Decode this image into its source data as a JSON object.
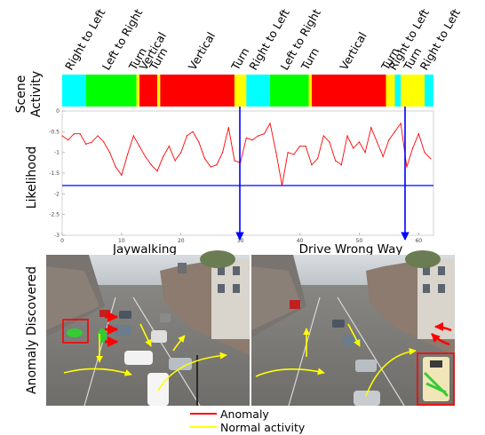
{
  "left_labels": {
    "scene_activity": [
      "Scene",
      "Activity"
    ],
    "likelihood": "Likelihood",
    "anomaly_discovered": "Anomaly Discovered"
  },
  "activity_bar": {
    "labels": [
      "Right to Left",
      "Left to Right",
      "Turn",
      "Vertical",
      "Turn",
      "Vertical",
      "Turn",
      "Right to Left",
      "Left to Right",
      "Turn",
      "Vertical",
      "Turn",
      "Right to Left",
      "Turn",
      "Right to Left"
    ],
    "segments": [
      {
        "color": "#00ffff",
        "span": [
          0,
          4
        ]
      },
      {
        "color": "#00ff00",
        "span": [
          4,
          12.5
        ]
      },
      {
        "color": "#ffff00",
        "span": [
          12.5,
          13
        ]
      },
      {
        "color": "#ff0000",
        "span": [
          13,
          16
        ]
      },
      {
        "color": "#ffff00",
        "span": [
          16,
          16.5
        ]
      },
      {
        "color": "#ff0000",
        "span": [
          16.5,
          29
        ]
      },
      {
        "color": "#ffff00",
        "span": [
          29,
          31
        ]
      },
      {
        "color": "#00ffff",
        "span": [
          31,
          35
        ]
      },
      {
        "color": "#00ff00",
        "span": [
          35,
          41.5
        ]
      },
      {
        "color": "#ffff00",
        "span": [
          41.5,
          42
        ]
      },
      {
        "color": "#ff0000",
        "span": [
          42,
          54.5
        ]
      },
      {
        "color": "#ffff00",
        "span": [
          54.5,
          56
        ]
      },
      {
        "color": "#00ffff",
        "span": [
          56,
          57
        ]
      },
      {
        "color": "#ffff00",
        "span": [
          57,
          61
        ]
      },
      {
        "color": "#00ffff",
        "span": [
          61,
          62.5
        ]
      }
    ]
  },
  "chart_data": {
    "type": "line",
    "xlim": [
      0,
      62.5
    ],
    "ylim": [
      -3,
      0
    ],
    "xticks": [
      "0",
      "10",
      "20",
      "30",
      "40",
      "50",
      "60"
    ],
    "yticks": [
      "0",
      "-0.5",
      "-1",
      "-1.5",
      "-2",
      "-2.5",
      "-3"
    ],
    "series": [
      {
        "color": "#ff0000",
        "x": [
          0,
          1,
          2,
          3,
          4,
          5,
          6,
          7,
          8,
          9,
          10,
          11,
          12,
          13,
          14,
          15,
          16,
          17,
          18,
          19,
          20,
          21,
          22,
          23,
          24,
          25,
          26,
          27,
          28,
          29,
          30,
          31,
          32,
          33,
          34,
          35,
          36,
          37,
          38,
          39,
          40,
          41,
          42,
          43,
          44,
          45,
          46,
          47,
          48,
          49,
          50,
          51,
          52,
          53,
          54,
          55,
          56,
          57,
          58,
          59,
          60,
          61,
          62
        ],
        "y": [
          -0.6,
          -0.7,
          -0.55,
          -0.55,
          -0.8,
          -0.75,
          -0.6,
          -0.75,
          -1.0,
          -1.35,
          -1.55,
          -1.05,
          -0.6,
          -0.85,
          -1.1,
          -1.3,
          -1.45,
          -1.1,
          -0.85,
          -1.2,
          -1.0,
          -0.6,
          -0.5,
          -0.75,
          -1.15,
          -1.35,
          -1.3,
          -1.0,
          -0.4,
          -1.2,
          -1.25,
          -0.65,
          -0.7,
          -0.6,
          -0.55,
          -0.3,
          -1.0,
          -1.8,
          -1.0,
          -1.05,
          -0.85,
          -0.85,
          -1.3,
          -1.15,
          -0.6,
          -0.75,
          -1.2,
          -1.3,
          -0.6,
          -0.9,
          -0.75,
          -1.0,
          -0.4,
          -0.75,
          -1.1,
          -0.7,
          -0.5,
          -0.3,
          -1.35,
          -0.9,
          -0.55,
          -1.0,
          -1.15
        ]
      },
      {
        "color": "#0000ff",
        "x": [
          0,
          62.5
        ],
        "y": [
          -1.8,
          -1.8
        ]
      }
    ]
  },
  "panels": {
    "left_title": "Jaywalking",
    "right_title": "Drive Wrong Way"
  },
  "legend": {
    "anomaly": "Anomaly",
    "normal": "Normal activity",
    "anomaly_color": "#ff0000",
    "normal_color": "#ffff00"
  }
}
